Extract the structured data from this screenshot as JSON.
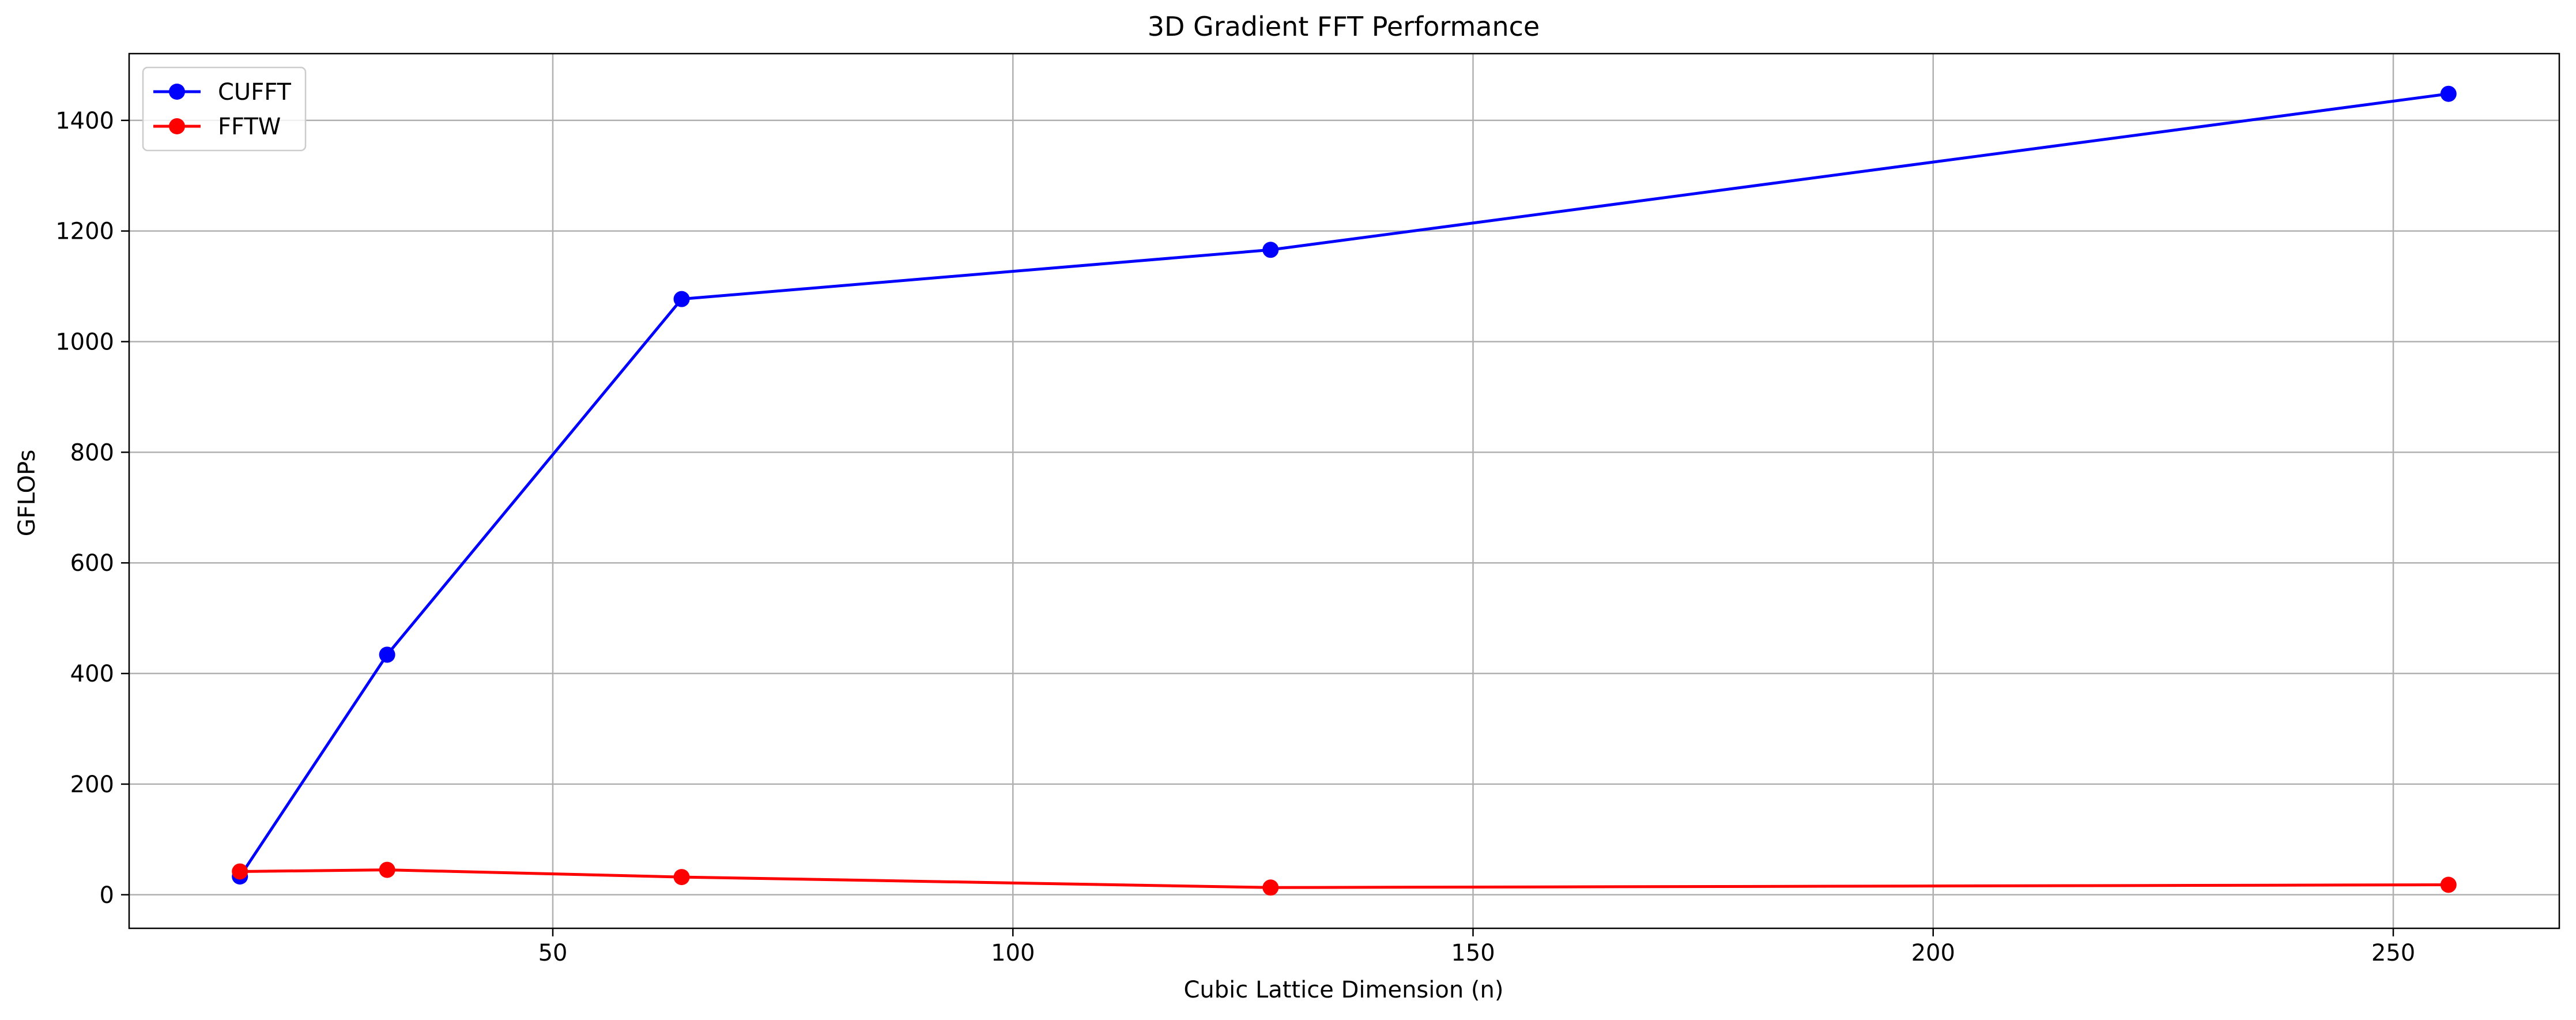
{
  "chart_data": {
    "type": "line",
    "title": "3D Gradient FFT Performance",
    "xlabel": "Cubic Lattice Dimension (n)",
    "ylabel": "GFLOPs",
    "xlim": [
      3.96,
      268.04
    ],
    "ylim": [
      -60.7,
      1520.7
    ],
    "xticks": [
      50,
      100,
      150,
      200,
      250
    ],
    "yticks": [
      0,
      200,
      400,
      600,
      800,
      1000,
      1200,
      1400
    ],
    "grid": true,
    "legend": "top-left",
    "series": [
      {
        "name": "CUFFT",
        "color": "#0000ff",
        "x": [
          16,
          32,
          64,
          128,
          256
        ],
        "y": [
          33,
          434,
          1077,
          1166,
          1448
        ]
      },
      {
        "name": "FFTW",
        "color": "#ff0000",
        "x": [
          16,
          32,
          64,
          128,
          256
        ],
        "y": [
          42,
          45,
          32,
          13,
          18
        ]
      }
    ]
  }
}
